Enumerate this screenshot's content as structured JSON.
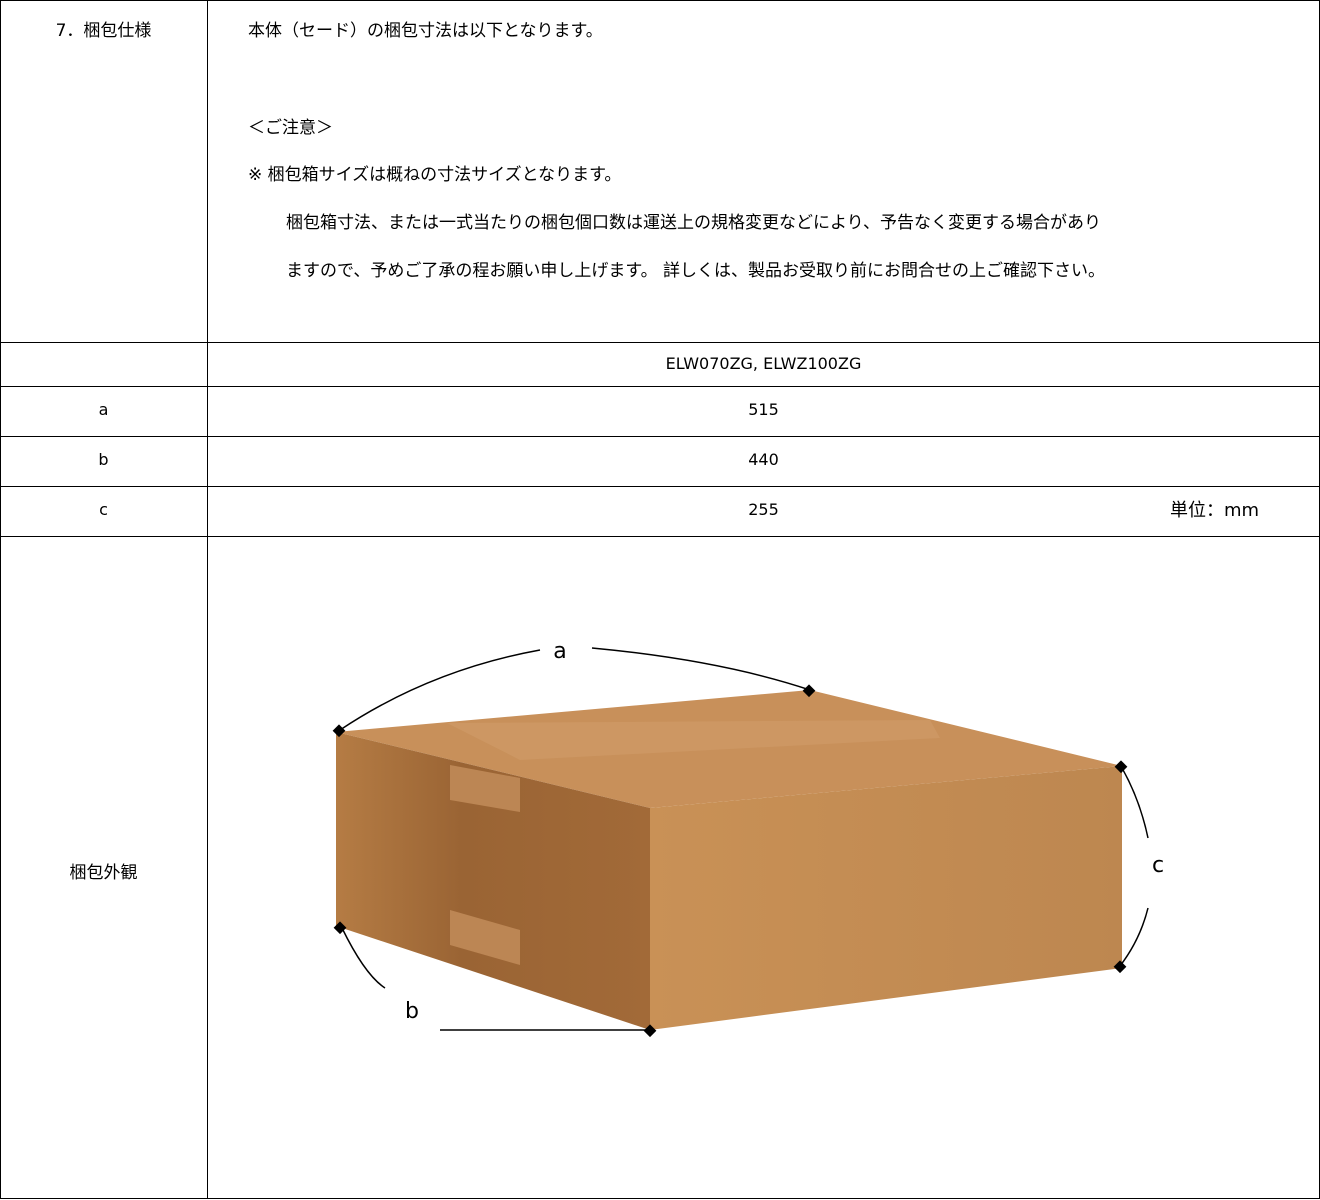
{
  "section": {
    "label": "7．梱包仕様",
    "lines": [
      "本体（セード）の梱包寸法は以下となります。",
      "＜ご注意＞",
      "※ 梱包箱サイズは概ねの寸法サイズとなります。",
      "梱包箱寸法、または一式当たりの梱包個口数は運送上の規格変更などにより、予告なく変更する場合があり",
      "ますので、予めご了承の程お願い申し上げます。 詳しくは、製品お受取り前にお問合せの上ご確認下さい。"
    ]
  },
  "table": {
    "header": "ELW070ZG, ELWZ100ZG",
    "rows": [
      [
        "a",
        "515"
      ],
      [
        "b",
        "440"
      ],
      [
        "c",
        "255"
      ]
    ],
    "unit": "単位：mm"
  },
  "appearance": {
    "label": "梱包外観",
    "dimension_labels": [
      "a",
      "b",
      "c"
    ]
  }
}
